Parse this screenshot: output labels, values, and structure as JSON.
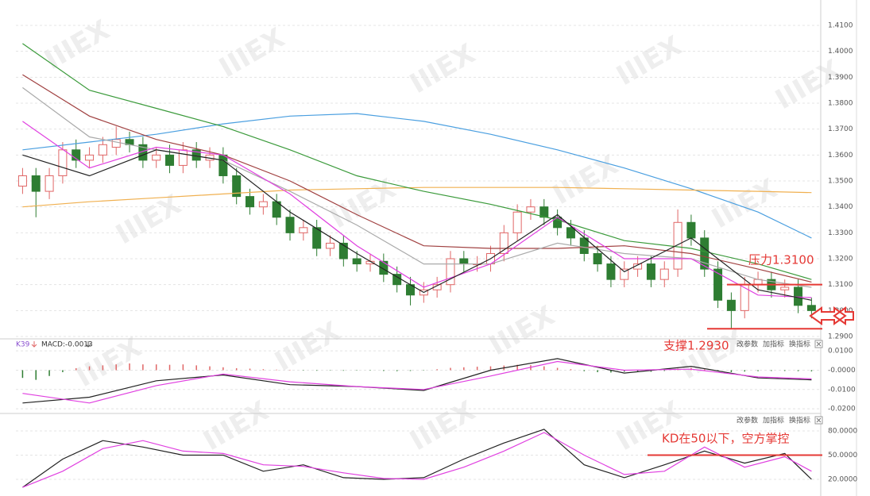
{
  "toolbar": [
    "改参数",
    "加指标",
    "换指标"
  ],
  "watermark": "IIIEX",
  "chart_data": [
    {
      "type": "candlestick",
      "open": [
        1.348,
        1.352,
        1.346,
        1.352,
        1.362,
        1.358,
        1.36,
        1.363,
        1.366,
        1.364,
        1.358,
        1.36,
        1.356,
        1.362,
        1.358,
        1.36,
        1.352,
        1.344,
        1.34,
        1.342,
        1.336,
        1.33,
        1.332,
        1.324,
        1.326,
        1.32,
        1.318,
        1.319,
        1.314,
        1.31,
        1.306,
        1.308,
        1.31,
        1.32,
        1.318,
        1.318,
        1.322,
        1.33,
        1.338,
        1.34,
        1.336,
        1.332,
        1.328,
        1.322,
        1.318,
        1.312,
        1.316,
        1.318,
        1.312,
        1.316,
        1.334,
        1.328,
        1.316,
        1.304,
        1.3,
        1.31,
        1.312,
        1.308,
        1.309,
        1.302
      ],
      "high": [
        1.355,
        1.355,
        1.355,
        1.365,
        1.366,
        1.363,
        1.367,
        1.371,
        1.369,
        1.367,
        1.363,
        1.364,
        1.365,
        1.365,
        1.363,
        1.363,
        1.355,
        1.347,
        1.345,
        1.345,
        1.339,
        1.335,
        1.335,
        1.329,
        1.329,
        1.323,
        1.322,
        1.322,
        1.317,
        1.313,
        1.311,
        1.313,
        1.323,
        1.323,
        1.321,
        1.325,
        1.333,
        1.341,
        1.343,
        1.343,
        1.339,
        1.335,
        1.331,
        1.325,
        1.321,
        1.319,
        1.321,
        1.321,
        1.319,
        1.339,
        1.337,
        1.331,
        1.319,
        1.307,
        1.313,
        1.315,
        1.315,
        1.312,
        1.312,
        1.305
      ],
      "low": [
        1.345,
        1.336,
        1.343,
        1.349,
        1.355,
        1.355,
        1.357,
        1.36,
        1.361,
        1.355,
        1.355,
        1.353,
        1.353,
        1.355,
        1.355,
        1.349,
        1.341,
        1.337,
        1.337,
        1.333,
        1.327,
        1.327,
        1.321,
        1.321,
        1.317,
        1.315,
        1.315,
        1.311,
        1.307,
        1.302,
        1.303,
        1.305,
        1.307,
        1.315,
        1.315,
        1.315,
        1.319,
        1.327,
        1.335,
        1.333,
        1.329,
        1.325,
        1.319,
        1.315,
        1.309,
        1.309,
        1.313,
        1.309,
        1.309,
        1.313,
        1.325,
        1.313,
        1.301,
        1.293,
        1.297,
        1.307,
        1.305,
        1.305,
        1.299,
        1.297
      ],
      "close": [
        1.352,
        1.346,
        1.352,
        1.362,
        1.358,
        1.36,
        1.364,
        1.366,
        1.364,
        1.358,
        1.36,
        1.356,
        1.362,
        1.358,
        1.36,
        1.352,
        1.344,
        1.34,
        1.342,
        1.336,
        1.33,
        1.332,
        1.324,
        1.326,
        1.32,
        1.318,
        1.319,
        1.314,
        1.31,
        1.306,
        1.308,
        1.31,
        1.32,
        1.318,
        1.318,
        1.322,
        1.33,
        1.338,
        1.34,
        1.336,
        1.332,
        1.328,
        1.322,
        1.318,
        1.312,
        1.316,
        1.318,
        1.312,
        1.316,
        1.334,
        1.328,
        1.316,
        1.304,
        1.3,
        1.31,
        1.312,
        1.308,
        1.309,
        1.302,
        1.3
      ],
      "up_color": "#e06666",
      "down_color": "#2e7d32",
      "lines": [
        {
          "color": "#4a9fe0",
          "x": [
            0,
            5,
            10,
            15,
            20,
            25,
            30,
            35,
            40,
            45,
            50,
            55,
            59
          ],
          "values": [
            1.362,
            1.365,
            1.368,
            1.372,
            1.375,
            1.376,
            1.373,
            1.368,
            1.362,
            1.355,
            1.347,
            1.338,
            1.328
          ]
        },
        {
          "color": "#f0b050",
          "x": [
            0,
            5,
            10,
            15,
            20,
            25,
            30,
            35,
            40,
            45,
            50,
            55,
            59
          ],
          "values": [
            1.34,
            1.342,
            1.3435,
            1.345,
            1.3465,
            1.347,
            1.3475,
            1.3475,
            1.3475,
            1.347,
            1.3465,
            1.346,
            1.3455
          ]
        },
        {
          "color": "#3a9a3a",
          "x": [
            0,
            5,
            10,
            15,
            20,
            25,
            30,
            35,
            40,
            45,
            50,
            55,
            59
          ],
          "values": [
            1.403,
            1.385,
            1.378,
            1.371,
            1.362,
            1.352,
            1.346,
            1.341,
            1.335,
            1.327,
            1.324,
            1.318,
            1.312
          ]
        },
        {
          "color": "#a04040",
          "x": [
            0,
            5,
            10,
            15,
            20,
            25,
            30,
            35,
            40,
            45,
            50,
            55,
            59
          ],
          "values": [
            1.391,
            1.375,
            1.366,
            1.36,
            1.35,
            1.337,
            1.325,
            1.324,
            1.324,
            1.325,
            1.322,
            1.316,
            1.311
          ]
        },
        {
          "color": "#aaaaaa",
          "x": [
            0,
            5,
            10,
            15,
            20,
            25,
            30,
            35,
            40,
            45,
            50,
            55,
            59
          ],
          "values": [
            1.386,
            1.367,
            1.362,
            1.358,
            1.346,
            1.333,
            1.318,
            1.318,
            1.326,
            1.322,
            1.32,
            1.312,
            1.309
          ]
        },
        {
          "color": "#e040e0",
          "x": [
            0,
            5,
            10,
            15,
            20,
            25,
            30,
            35,
            40,
            45,
            50,
            55,
            59
          ],
          "values": [
            1.373,
            1.355,
            1.363,
            1.36,
            1.345,
            1.325,
            1.309,
            1.318,
            1.336,
            1.32,
            1.32,
            1.306,
            1.305
          ]
        },
        {
          "color": "#222222",
          "x": [
            0,
            5,
            10,
            15,
            20,
            25,
            30,
            35,
            40,
            45,
            50,
            55,
            59
          ],
          "values": [
            1.36,
            1.352,
            1.362,
            1.358,
            1.338,
            1.322,
            1.307,
            1.32,
            1.337,
            1.315,
            1.328,
            1.308,
            1.304
          ]
        }
      ],
      "ylim": [
        1.2897,
        1.4198
      ],
      "yticks": [
        {
          "value": 1.29,
          "label": "1.2900"
        },
        {
          "value": 1.3,
          "label": "1.3000"
        },
        {
          "value": 1.31,
          "label": "1.3100"
        },
        {
          "value": 1.32,
          "label": "1.3200"
        },
        {
          "value": 1.33,
          "label": "1.3300"
        },
        {
          "value": 1.34,
          "label": "1.3400"
        },
        {
          "value": 1.35,
          "label": "1.3500"
        },
        {
          "value": 1.36,
          "label": "1.3600"
        },
        {
          "value": 1.37,
          "label": "1.3700"
        },
        {
          "value": 1.38,
          "label": "1.3800"
        },
        {
          "value": 1.39,
          "label": "1.3900"
        },
        {
          "value": 1.4,
          "label": "1.4000"
        },
        {
          "value": 1.41,
          "label": "1.4100"
        }
      ],
      "grid": true,
      "annotations": [
        {
          "text": "压力1.3100",
          "value": 1.31,
          "color": "#e53935"
        },
        {
          "text": "支撑1.2930",
          "value": 1.293,
          "color": "#e53935"
        }
      ]
    },
    {
      "type": "macd",
      "indicator_label": "K39",
      "macd_label": "MACD:-0.0013",
      "histogram": [
        -0.004,
        -0.005,
        -0.003,
        -0.001,
        0.001,
        0.002,
        0.0025,
        0.003,
        0.0035,
        0.003,
        0.003,
        0.0028,
        0.003,
        0.0025,
        0.002,
        0.0015,
        0.001,
        0.0008,
        0.0005,
        0.0003,
        0.0002,
        -0.0002,
        -0.0003,
        -0.0002,
        -0.0003,
        -0.0002,
        -0.0002,
        -0.0004,
        -0.0005,
        -0.0004,
        -0.0002,
        0.0005,
        0.0012,
        0.0015,
        0.0018,
        0.002,
        0.0024,
        0.0028,
        0.0026,
        0.002,
        0.0012,
        0.0005,
        -0.0005,
        -0.001,
        -0.0012,
        -0.0008,
        -0.0006,
        -0.0008,
        -0.0004,
        0.0008,
        0.0012,
        0.0004,
        -0.0006,
        -0.001,
        -0.0007,
        -0.0005,
        -0.0004,
        -0.0004,
        -0.0005,
        -0.0006
      ],
      "up_color": "#e06666",
      "down_color": "#2e7d32",
      "lines": [
        {
          "color": "#222222",
          "x": [
            0,
            5,
            10,
            15,
            20,
            25,
            30,
            35,
            40,
            45,
            50,
            55,
            59
          ],
          "values": [
            -0.017,
            -0.014,
            -0.0055,
            -0.0025,
            -0.0075,
            -0.0085,
            -0.0105,
            0.0,
            0.006,
            -0.0015,
            0.002,
            -0.004,
            -0.005
          ]
        },
        {
          "color": "#e040e0",
          "x": [
            0,
            5,
            10,
            15,
            20,
            25,
            30,
            35,
            40,
            45,
            50,
            55,
            59
          ],
          "values": [
            -0.012,
            -0.017,
            -0.008,
            -0.002,
            -0.006,
            -0.0085,
            -0.01,
            -0.003,
            0.0045,
            0.0,
            0.0005,
            -0.0035,
            -0.0045
          ]
        }
      ],
      "ylim": [
        -0.022,
        0.0158
      ],
      "yticks": [
        {
          "value": 0.01,
          "label": "0.0100"
        },
        {
          "value": 0,
          "label": "-0.0000"
        },
        {
          "value": -0.01,
          "label": "-0.0100"
        },
        {
          "value": -0.02,
          "label": "-0.0200"
        }
      ],
      "grid": true
    },
    {
      "type": "line",
      "lines": [
        {
          "color": "#222222",
          "x": [
            0,
            3,
            6,
            9,
            12,
            15,
            18,
            21,
            24,
            27,
            30,
            33,
            36,
            39,
            42,
            45,
            48,
            51,
            54,
            57,
            59
          ],
          "values": [
            10,
            45,
            68,
            60,
            50,
            50,
            30,
            38,
            22,
            20,
            22,
            45,
            65,
            82,
            38,
            22,
            38,
            55,
            40,
            52,
            20
          ]
        },
        {
          "color": "#e040e0",
          "x": [
            0,
            3,
            6,
            9,
            12,
            15,
            18,
            21,
            24,
            27,
            30,
            33,
            36,
            39,
            42,
            45,
            48,
            51,
            54,
            57,
            59
          ],
          "values": [
            10,
            30,
            58,
            68,
            55,
            52,
            38,
            36,
            28,
            21,
            20,
            35,
            55,
            78,
            50,
            26,
            30,
            60,
            35,
            48,
            30
          ]
        }
      ],
      "ylim": [
        6.2,
        100.6
      ],
      "yticks": [
        {
          "value": 80,
          "label": "80.0000"
        },
        {
          "value": 50,
          "label": "50.0000"
        },
        {
          "value": 20,
          "label": "20.0000"
        }
      ],
      "grid": true,
      "annotations": [
        {
          "text": "KD在50以下，空方掌控",
          "value": 50,
          "color": "#e53935"
        }
      ]
    }
  ]
}
